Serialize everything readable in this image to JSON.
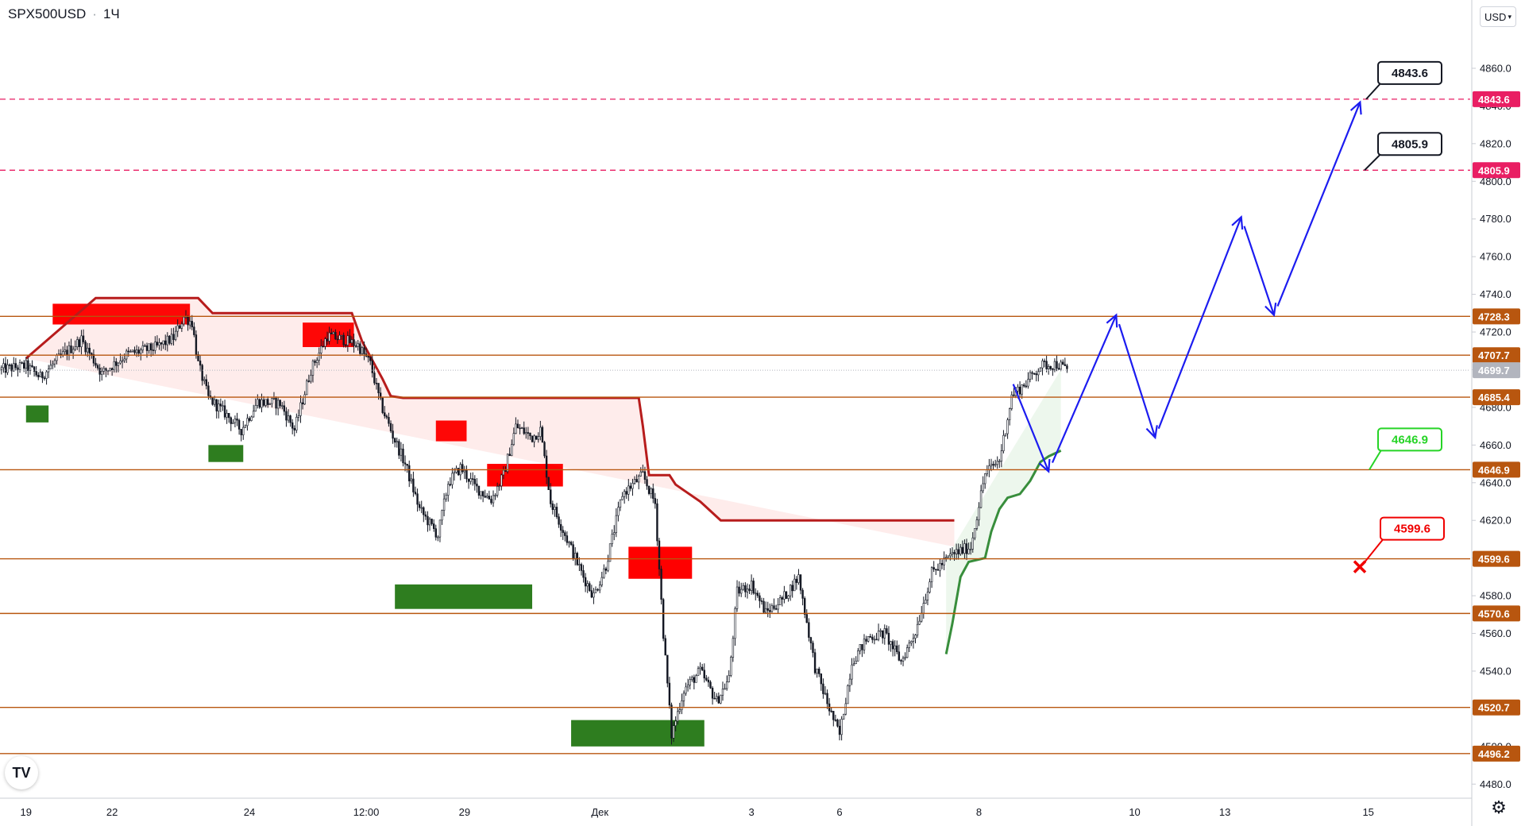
{
  "symbol": "SPX500USD",
  "interval": "1Ч",
  "currency": "USD",
  "logo": "TV",
  "icons": {
    "currency_dropdown": "chevron-down-icon",
    "settings": "gear-icon",
    "logo": "tradingview-logo-icon"
  },
  "colors": {
    "level_line": "#b8560f",
    "dashed_line": "#e91e63",
    "price_line": "#b2b5be",
    "bull_candle": "#131722",
    "arrow": "#1c1cf0",
    "supply_zone": "#ff0000",
    "demand_zone": "#2e7d1f",
    "trail_bear": "#b71c1c",
    "trail_bull": "#388e3c"
  },
  "chart_data": {
    "type": "candlestick",
    "title": "",
    "y_axis": {
      "range": [
        4478,
        4868
      ],
      "ticks": [
        "4480.0",
        "4500.0",
        "4520.0",
        "4540.0",
        "4560.0",
        "4580.0",
        "4600.0",
        "4620.0",
        "4640.0",
        "4660.0",
        "4680.0",
        "4700.0",
        "4720.0",
        "4740.0",
        "4760.0",
        "4780.0",
        "4800.0",
        "4820.0",
        "4840.0",
        "4860.0"
      ]
    },
    "x_axis": {
      "ticks": [
        {
          "label": "19",
          "bar": -9
        },
        {
          "label": "22",
          "bar": 33
        },
        {
          "label": "24",
          "bar": 100
        },
        {
          "label": "12:00",
          "bar": 157
        },
        {
          "label": "29",
          "bar": 205
        },
        {
          "label": "Дек",
          "bar": 271
        },
        {
          "label": "3",
          "bar": 345
        },
        {
          "label": "6",
          "bar": 388
        },
        {
          "label": "8",
          "bar": 456
        },
        {
          "label": "10",
          "bar": 532
        },
        {
          "label": "13",
          "bar": 576
        },
        {
          "label": "15",
          "bar": 646
        }
      ]
    },
    "horizontal_levels": [
      {
        "value": 4728.3,
        "label": "4728.3",
        "style": "solid"
      },
      {
        "value": 4707.7,
        "label": "4707.7",
        "style": "solid"
      },
      {
        "value": 4685.4,
        "label": "4685.4",
        "style": "solid"
      },
      {
        "value": 4646.9,
        "label": "4646.9",
        "style": "solid"
      },
      {
        "value": 4599.6,
        "label": "4599.6",
        "style": "solid"
      },
      {
        "value": 4570.6,
        "label": "4570.6",
        "style": "solid"
      },
      {
        "value": 4520.7,
        "label": "4520.7",
        "style": "solid"
      },
      {
        "value": 4496.2,
        "label": "4496.2",
        "style": "solid"
      },
      {
        "value": 4843.6,
        "label": "4843.6",
        "style": "dashed"
      },
      {
        "value": 4805.9,
        "label": "4805.9",
        "style": "dashed"
      }
    ],
    "current_price": {
      "value": 4699.7,
      "label": "4699.7"
    },
    "callouts": [
      {
        "label": "4843.6",
        "value": 4843.6,
        "kind": "target"
      },
      {
        "label": "4805.9",
        "value": 4805.9,
        "kind": "target"
      },
      {
        "label": "4646.9",
        "value": 4646.9,
        "kind": "entry"
      },
      {
        "label": "4599.6",
        "value": 4599.6,
        "kind": "stop"
      }
    ],
    "forecast_path": [
      {
        "bar": 471,
        "value": 4697
      },
      {
        "bar": 490,
        "value": 4646
      },
      {
        "bar": 523,
        "value": 4729
      },
      {
        "bar": 542,
        "value": 4664
      },
      {
        "bar": 584,
        "value": 4781
      },
      {
        "bar": 600,
        "value": 4729
      },
      {
        "bar": 642,
        "value": 4842
      }
    ],
    "supply_zones": [
      {
        "bar_start": 4,
        "bar_end": 71,
        "high": 4735,
        "low": 4724
      },
      {
        "bar_start": 126,
        "bar_end": 151,
        "high": 4725,
        "low": 4712
      },
      {
        "bar_start": 191,
        "bar_end": 206,
        "high": 4673,
        "low": 4662
      },
      {
        "bar_start": 216,
        "bar_end": 253,
        "high": 4650,
        "low": 4638
      },
      {
        "bar_start": 285,
        "bar_end": 316,
        "high": 4606,
        "low": 4589
      }
    ],
    "demand_zones": [
      {
        "bar_start": -9,
        "bar_end": 2,
        "high": 4681,
        "low": 4672
      },
      {
        "bar_start": 80,
        "bar_end": 97,
        "high": 4660,
        "low": 4651
      },
      {
        "bar_start": 171,
        "bar_end": 238,
        "high": 4586,
        "low": 4573
      },
      {
        "bar_start": 257,
        "bar_end": 322,
        "high": 4514,
        "low": 4500
      }
    ]
  }
}
